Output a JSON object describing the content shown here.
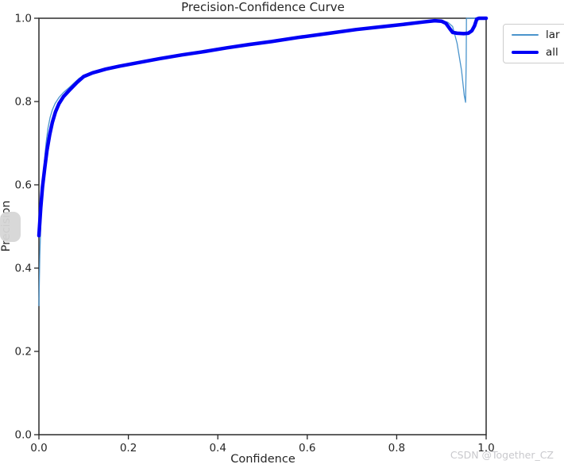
{
  "watermark": "CSDN @Together_CZ",
  "colors": {
    "background": "#ffffff",
    "spine": "#2b2b2b",
    "tick": "#262626",
    "tick_label": "#262626",
    "watermark": "#c9c9cd",
    "overlay_handle": "#d6d6d6",
    "legend_border": "#cccccc"
  },
  "chart_data": {
    "type": "line",
    "title": "Precision-Confidence Curve",
    "xlabel": "Confidence",
    "ylabel": "Precision",
    "xlim": [
      0.0,
      1.0
    ],
    "ylim": [
      0.0,
      1.0
    ],
    "x_ticks": [
      "0.0",
      "0.2",
      "0.4",
      "0.6",
      "0.8",
      "1.0"
    ],
    "y_ticks": [
      "0.0",
      "0.2",
      "0.4",
      "0.6",
      "0.8",
      "1.0"
    ],
    "grid": false,
    "legend_position": "upper-right-outside-clipped",
    "series": [
      {
        "label": "lar",
        "color": "#4a94cc",
        "linewidth": 1.3,
        "points": [
          [
            0.0,
            0.31
          ],
          [
            0.002,
            0.43
          ],
          [
            0.005,
            0.53
          ],
          [
            0.008,
            0.6
          ],
          [
            0.012,
            0.655
          ],
          [
            0.016,
            0.7
          ],
          [
            0.02,
            0.735
          ],
          [
            0.025,
            0.762
          ],
          [
            0.03,
            0.78
          ],
          [
            0.036,
            0.795
          ],
          [
            0.045,
            0.81
          ],
          [
            0.055,
            0.822
          ],
          [
            0.07,
            0.836
          ],
          [
            0.09,
            0.856
          ],
          [
            0.11,
            0.866
          ],
          [
            0.15,
            0.878
          ],
          [
            0.2,
            0.89
          ],
          [
            0.25,
            0.9
          ],
          [
            0.32,
            0.912
          ],
          [
            0.4,
            0.928
          ],
          [
            0.5,
            0.943
          ],
          [
            0.58,
            0.955
          ],
          [
            0.65,
            0.965
          ],
          [
            0.71,
            0.973
          ],
          [
            0.77,
            0.98
          ],
          [
            0.82,
            0.986
          ],
          [
            0.86,
            0.991
          ],
          [
            0.89,
            0.994
          ],
          [
            0.905,
            0.993
          ],
          [
            0.915,
            0.99
          ],
          [
            0.925,
            0.98
          ],
          [
            0.935,
            0.94
          ],
          [
            0.945,
            0.875
          ],
          [
            0.951,
            0.815
          ],
          [
            0.954,
            0.798
          ],
          [
            0.9555,
            0.9
          ],
          [
            0.956,
            1.0
          ],
          [
            1.0,
            1.0
          ]
        ]
      },
      {
        "label": "all",
        "color": "#0000f5",
        "linewidth": 4.5,
        "points": [
          [
            0.0,
            0.478
          ],
          [
            0.004,
            0.545
          ],
          [
            0.008,
            0.595
          ],
          [
            0.013,
            0.64
          ],
          [
            0.018,
            0.682
          ],
          [
            0.024,
            0.72
          ],
          [
            0.03,
            0.75
          ],
          [
            0.037,
            0.775
          ],
          [
            0.045,
            0.795
          ],
          [
            0.055,
            0.812
          ],
          [
            0.068,
            0.827
          ],
          [
            0.085,
            0.846
          ],
          [
            0.1,
            0.86
          ],
          [
            0.12,
            0.869
          ],
          [
            0.15,
            0.878
          ],
          [
            0.18,
            0.885
          ],
          [
            0.22,
            0.893
          ],
          [
            0.27,
            0.903
          ],
          [
            0.32,
            0.912
          ],
          [
            0.37,
            0.92
          ],
          [
            0.42,
            0.929
          ],
          [
            0.47,
            0.937
          ],
          [
            0.52,
            0.944
          ],
          [
            0.58,
            0.954
          ],
          [
            0.65,
            0.964
          ],
          [
            0.71,
            0.973
          ],
          [
            0.77,
            0.98
          ],
          [
            0.82,
            0.986
          ],
          [
            0.86,
            0.991
          ],
          [
            0.885,
            0.994
          ],
          [
            0.9,
            0.993
          ],
          [
            0.91,
            0.988
          ],
          [
            0.918,
            0.976
          ],
          [
            0.925,
            0.966
          ],
          [
            0.935,
            0.964
          ],
          [
            0.95,
            0.963
          ],
          [
            0.96,
            0.964
          ],
          [
            0.968,
            0.97
          ],
          [
            0.974,
            0.982
          ],
          [
            0.979,
            0.998
          ],
          [
            0.984,
            1.0
          ],
          [
            1.0,
            1.0
          ]
        ]
      }
    ]
  }
}
